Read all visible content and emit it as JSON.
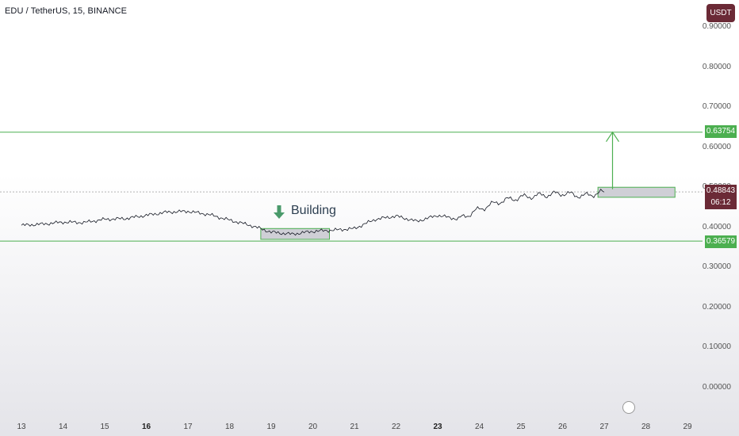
{
  "title": "EDU / TetherUS, 15, BINANCE",
  "currency_badge": "USDT",
  "annotation": "Building",
  "price_labels": {
    "resistance": "0.63754",
    "current": "0.48843",
    "countdown": "06:12",
    "support": "0.36579"
  },
  "colors": {
    "line": "#131722",
    "level": "#4caf50",
    "current": "#6b2a36",
    "box": "#cfcfd6"
  },
  "chart_data": {
    "type": "line",
    "title": "EDU / TetherUS, 15, BINANCE",
    "ylim": [
      0.0,
      0.9
    ],
    "yticks": [
      "0.90000",
      "0.80000",
      "0.70000",
      "0.60000",
      "0.50000",
      "0.40000",
      "0.30000",
      "0.20000",
      "0.10000",
      "0.00000"
    ],
    "xticks": [
      "13",
      "14",
      "15",
      "16",
      "17",
      "18",
      "19",
      "20",
      "21",
      "22",
      "23",
      "24",
      "25",
      "26",
      "27",
      "28",
      "29"
    ],
    "x": [
      13.0,
      13.5,
      14.0,
      14.5,
      15.0,
      15.5,
      16.0,
      16.5,
      17.0,
      17.5,
      18.0,
      18.5,
      19.0,
      19.5,
      20.0,
      20.5,
      21.0,
      21.5,
      22.0,
      22.5,
      23.0,
      23.5,
      24.0,
      24.5,
      25.0,
      25.5,
      26.0,
      26.5,
      27.0
    ],
    "series": [
      {
        "values": [
          0.405,
          0.408,
          0.413,
          0.412,
          0.42,
          0.422,
          0.43,
          0.438,
          0.44,
          0.432,
          0.418,
          0.405,
          0.388,
          0.383,
          0.39,
          0.393,
          0.397,
          0.42,
          0.428,
          0.415,
          0.43,
          0.42,
          0.445,
          0.465,
          0.475,
          0.48,
          0.485,
          0.478,
          0.488
        ]
      }
    ],
    "levels": {
      "resistance": 0.63754,
      "current": 0.48843,
      "support": 0.36579
    },
    "annotations": [
      "Building"
    ]
  }
}
